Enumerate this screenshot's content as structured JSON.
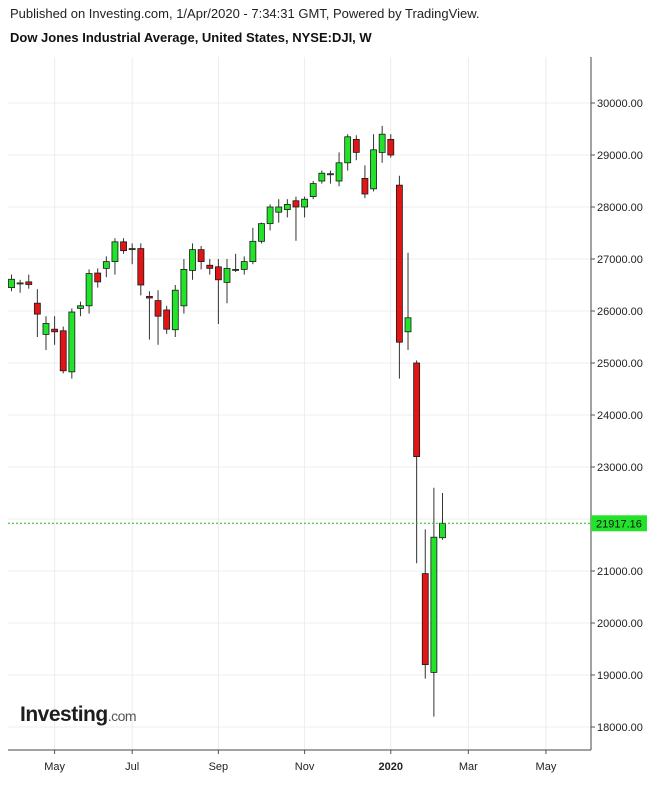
{
  "header": {
    "published": "Published on Investing.com, 1/Apr/2020 - 7:34:31 GMT, Powered by TradingView.",
    "title": "Dow Jones Industrial Average, United States, NYSE:DJI, W"
  },
  "logo": {
    "brand": "Investing",
    "tld": ".com"
  },
  "colors": {
    "up": "#22e22a",
    "down": "#e01616",
    "outline": "#1a1a1a",
    "last_price_bg": "#22e22a",
    "last_price_line": "#1bbf1b"
  },
  "chart_data": {
    "type": "candlestick",
    "title": "Dow Jones Industrial Average, United States, NYSE:DJI, W",
    "interval": "W",
    "ylim": [
      17600,
      30900
    ],
    "y_ticks": [
      {
        "value": 18000,
        "label": "18000.00"
      },
      {
        "value": 19000,
        "label": "19000.00"
      },
      {
        "value": 20000,
        "label": "20000.00"
      },
      {
        "value": 21000,
        "label": "21000.00"
      },
      {
        "value": 22000,
        "label": "22000.00"
      },
      {
        "value": 23000,
        "label": "23000.00"
      },
      {
        "value": 24000,
        "label": "24000.00"
      },
      {
        "value": 25000,
        "label": "25000.00"
      },
      {
        "value": 26000,
        "label": "26000.00"
      },
      {
        "value": 27000,
        "label": "27000.00"
      },
      {
        "value": 28000,
        "label": "28000.00"
      },
      {
        "value": 29000,
        "label": "29000.00"
      },
      {
        "value": 30000,
        "label": "30000.00"
      }
    ],
    "x_ticks": [
      {
        "label": "May",
        "at_bar": 5
      },
      {
        "label": "Jul",
        "at_bar": 14
      },
      {
        "label": "Sep",
        "at_bar": 24
      },
      {
        "label": "Nov",
        "at_bar": 34
      },
      {
        "label": "2020",
        "at_bar": 44,
        "bold": true
      },
      {
        "label": "Mar",
        "at_bar": 53
      },
      {
        "label": "May",
        "at_bar": 62
      }
    ],
    "last_price": {
      "value": 21917.16,
      "label": "21917.16"
    },
    "grid": true,
    "candles": [
      {
        "o": 26450,
        "h": 26700,
        "l": 26380,
        "c": 26610
      },
      {
        "o": 26520,
        "h": 26600,
        "l": 26350,
        "c": 26540
      },
      {
        "o": 26560,
        "h": 26700,
        "l": 26430,
        "c": 26510
      },
      {
        "o": 26150,
        "h": 26420,
        "l": 25500,
        "c": 25940
      },
      {
        "o": 25550,
        "h": 25900,
        "l": 25250,
        "c": 25760
      },
      {
        "o": 25650,
        "h": 25900,
        "l": 25350,
        "c": 25600
      },
      {
        "o": 25620,
        "h": 25700,
        "l": 24800,
        "c": 24850
      },
      {
        "o": 24830,
        "h": 26050,
        "l": 24700,
        "c": 25980
      },
      {
        "o": 26050,
        "h": 26180,
        "l": 25900,
        "c": 26100
      },
      {
        "o": 26100,
        "h": 26800,
        "l": 25950,
        "c": 26720
      },
      {
        "o": 26730,
        "h": 26820,
        "l": 26450,
        "c": 26560
      },
      {
        "o": 26820,
        "h": 27050,
        "l": 26650,
        "c": 26950
      },
      {
        "o": 26950,
        "h": 27400,
        "l": 26700,
        "c": 27330
      },
      {
        "o": 27330,
        "h": 27400,
        "l": 27100,
        "c": 27160
      },
      {
        "o": 27180,
        "h": 27300,
        "l": 26900,
        "c": 27200
      },
      {
        "o": 27200,
        "h": 27300,
        "l": 26300,
        "c": 26500
      },
      {
        "o": 26280,
        "h": 26380,
        "l": 25450,
        "c": 26250
      },
      {
        "o": 26200,
        "h": 26400,
        "l": 25350,
        "c": 25900
      },
      {
        "o": 26020,
        "h": 26100,
        "l": 25560,
        "c": 25650
      },
      {
        "o": 25640,
        "h": 26500,
        "l": 25500,
        "c": 26400
      },
      {
        "o": 26100,
        "h": 27000,
        "l": 25950,
        "c": 26800
      },
      {
        "o": 26780,
        "h": 27300,
        "l": 26600,
        "c": 27180
      },
      {
        "o": 27180,
        "h": 27250,
        "l": 26800,
        "c": 26950
      },
      {
        "o": 26880,
        "h": 27000,
        "l": 26700,
        "c": 26820
      },
      {
        "o": 26850,
        "h": 27000,
        "l": 25750,
        "c": 26600
      },
      {
        "o": 26550,
        "h": 27000,
        "l": 26150,
        "c": 26820
      },
      {
        "o": 26800,
        "h": 27100,
        "l": 26750,
        "c": 26800
      },
      {
        "o": 26800,
        "h": 27050,
        "l": 26700,
        "c": 26950
      },
      {
        "o": 26950,
        "h": 27600,
        "l": 26900,
        "c": 27340
      },
      {
        "o": 27340,
        "h": 27700,
        "l": 27300,
        "c": 27680
      },
      {
        "o": 27680,
        "h": 28050,
        "l": 27550,
        "c": 28000
      },
      {
        "o": 27900,
        "h": 28150,
        "l": 27700,
        "c": 28000
      },
      {
        "o": 27950,
        "h": 28150,
        "l": 27800,
        "c": 28050
      },
      {
        "o": 28120,
        "h": 28200,
        "l": 27350,
        "c": 28000
      },
      {
        "o": 28000,
        "h": 28200,
        "l": 27800,
        "c": 28150
      },
      {
        "o": 28200,
        "h": 28500,
        "l": 28150,
        "c": 28450
      },
      {
        "o": 28500,
        "h": 28700,
        "l": 28450,
        "c": 28650
      },
      {
        "o": 28620,
        "h": 28700,
        "l": 28450,
        "c": 28640
      },
      {
        "o": 28500,
        "h": 29050,
        "l": 28400,
        "c": 28850
      },
      {
        "o": 28850,
        "h": 29400,
        "l": 28700,
        "c": 29350
      },
      {
        "o": 29300,
        "h": 29380,
        "l": 28900,
        "c": 29050
      },
      {
        "o": 28550,
        "h": 28800,
        "l": 28170,
        "c": 28250
      },
      {
        "o": 28350,
        "h": 29400,
        "l": 28300,
        "c": 29100
      },
      {
        "o": 29050,
        "h": 29560,
        "l": 28850,
        "c": 29400
      },
      {
        "o": 29300,
        "h": 29400,
        "l": 28950,
        "c": 29000
      },
      {
        "o": 28420,
        "h": 28600,
        "l": 24700,
        "c": 25400
      },
      {
        "o": 25600,
        "h": 27120,
        "l": 25250,
        "c": 25870
      },
      {
        "o": 25000,
        "h": 25050,
        "l": 21150,
        "c": 23200
      },
      {
        "o": 20950,
        "h": 21800,
        "l": 18930,
        "c": 19200
      },
      {
        "o": 19050,
        "h": 22600,
        "l": 18200,
        "c": 21650
      },
      {
        "o": 21640,
        "h": 22500,
        "l": 21600,
        "c": 21917
      }
    ]
  }
}
